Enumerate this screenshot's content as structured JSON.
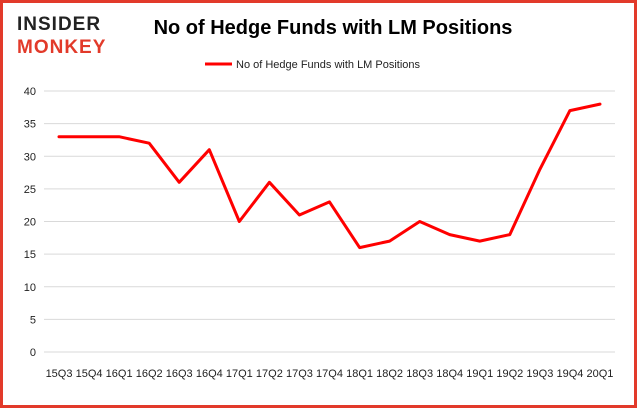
{
  "logo": {
    "line1": "INSIDER",
    "line2": "MONKEY"
  },
  "chart_data": {
    "type": "line",
    "title": "No of Hedge Funds with LM Positions",
    "categories": [
      "15Q3",
      "15Q4",
      "16Q1",
      "16Q2",
      "16Q3",
      "16Q4",
      "17Q1",
      "17Q2",
      "17Q3",
      "17Q4",
      "18Q1",
      "18Q2",
      "18Q3",
      "18Q4",
      "19Q1",
      "19Q2",
      "19Q3",
      "19Q4",
      "20Q1"
    ],
    "series": [
      {
        "name": "No of Hedge Funds with LM Positions",
        "values": [
          33,
          33,
          33,
          32,
          26,
          31,
          20,
          26,
          21,
          23,
          16,
          17,
          20,
          18,
          17,
          18,
          28,
          37,
          38
        ],
        "color": "#ff0000"
      }
    ],
    "y_ticks": [
      "0",
      "5",
      "10",
      "15",
      "20",
      "25",
      "30",
      "35",
      "40"
    ],
    "ylim": [
      0,
      40
    ],
    "grid": true,
    "legend_position": "top-center"
  },
  "colors": {
    "accent": "#e23a2a",
    "series": "#ff0000",
    "grid": "#d9d9d9"
  }
}
